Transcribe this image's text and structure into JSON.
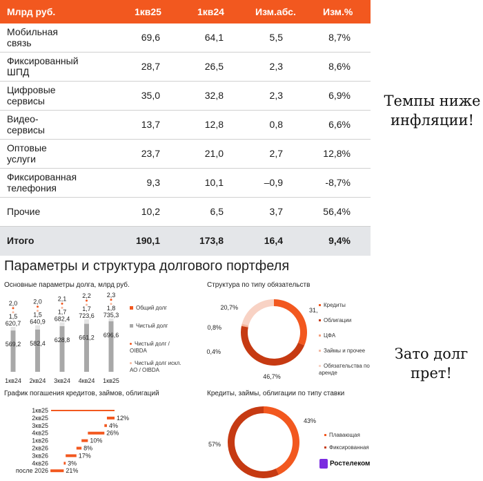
{
  "table": {
    "headers": [
      "Млрд руб.",
      "1кв25",
      "1кв24",
      "Изм.абс.",
      "Изм.%"
    ],
    "rows": [
      {
        "name": "Мобильная\nсвязь",
        "v1": "69,6",
        "v2": "64,1",
        "abs": "5,5",
        "pct": "8,7%"
      },
      {
        "name": "Фиксированный\nШПД",
        "v1": "28,7",
        "v2": "26,5",
        "abs": "2,3",
        "pct": "8,6%"
      },
      {
        "name": "Цифровые\nсервисы",
        "v1": "35,0",
        "v2": "32,8",
        "abs": "2,3",
        "pct": "6,9%"
      },
      {
        "name": "Видео-\nсервисы",
        "v1": "13,7",
        "v2": "12,8",
        "abs": "0,8",
        "pct": "6,6%"
      },
      {
        "name": "Оптовые\nуслуги",
        "v1": "23,7",
        "v2": "21,0",
        "abs": "2,7",
        "pct": "12,8%"
      },
      {
        "name": "Фиксированная\nтелефония",
        "v1": "9,3",
        "v2": "10,1",
        "abs": "–0,9",
        "pct": "-8,7%"
      },
      {
        "name": "Прочие",
        "v1": "10,2",
        "v2": "6,5",
        "abs": "3,7",
        "pct": "56,4%"
      }
    ],
    "total": {
      "name": "Итого",
      "v1": "190,1",
      "v2": "173,8",
      "abs": "16,4",
      "pct": "9,4%"
    }
  },
  "side_notes": {
    "top": "Темпы ниже\nинфляции!",
    "bottom": "Зато долг\nпрет!"
  },
  "section_title": "Параметры и структура долгового портфеля",
  "colors": {
    "accent": "#f2581f",
    "dark_red": "#c63a12",
    "gray": "#a8a8a8",
    "light_peach": "#f8d2c4",
    "total_bg": "#e4e6e9",
    "logo": "#7a2be0"
  },
  "debt_chart": {
    "subtitle": "Основные параметры долга, млрд руб.",
    "chart_data": {
      "type": "bar",
      "categories": [
        "1кв24",
        "2кв24",
        "3кв24",
        "4кв24",
        "1кв25"
      ],
      "series": [
        {
          "name": "Общий долг",
          "values": [
            "620,7",
            "640,9",
            "682,4",
            "723,6",
            "735,3"
          ]
        },
        {
          "name": "Чистый долг",
          "values": [
            "569,2",
            "582,4",
            "628,8",
            "661,2",
            "696,6"
          ]
        },
        {
          "name": "Чистый долг / OIBDA",
          "values": [
            "2,0",
            "2,0",
            "2,1",
            "2,2",
            "2,3"
          ]
        },
        {
          "name": "Чистый долг искл. АО / OIBDA",
          "values": [
            "1,5",
            "1,5",
            "1,7",
            "1,7",
            "1,8"
          ]
        }
      ],
      "total_debt": [
        620.7,
        640.9,
        682.4,
        723.6,
        735.3
      ],
      "net_debt": [
        569.2,
        582.4,
        628.8,
        661.2,
        696.6
      ]
    },
    "legend": [
      "Общий долг",
      "Чистый долг",
      "Чистый долг /\nOIBDA",
      "Чистый долг искл.\nАО / OIBDA"
    ]
  },
  "structure_chart": {
    "subtitle": "Структура по типу обязательств",
    "chart_data": {
      "type": "pie",
      "labels": [
        "Кредиты",
        "Облигации",
        "ЦФА",
        "Займы и прочее",
        "Обязательства по аренде"
      ],
      "values": [
        31.4,
        46.7,
        0.4,
        0.8,
        20.7
      ],
      "value_labels": [
        "31,4%",
        "46,7%",
        "0,4%",
        "0,8%",
        "20,7%"
      ]
    },
    "legend": [
      "Кредиты",
      "Облигации",
      "ЦФА",
      "Займы и прочее",
      "Обязательства по\nаренде"
    ]
  },
  "repay_chart": {
    "subtitle": "График погашения кредитов, займов, облигаций",
    "chart_data": {
      "type": "bar",
      "categories": [
        "1кв25",
        "2кв25",
        "3кв25",
        "4кв25",
        "1кв26",
        "2кв26",
        "3кв26",
        "4кв26",
        "после 2026"
      ],
      "values": [
        null,
        12,
        4,
        26,
        10,
        8,
        17,
        3,
        21
      ],
      "value_labels": [
        "",
        "12%",
        "4%",
        "26%",
        "10%",
        "8%",
        "17%",
        "3%",
        "21%"
      ]
    }
  },
  "rate_chart": {
    "subtitle": "Кредиты, займы, облигации по типу ставки",
    "chart_data": {
      "type": "pie",
      "labels": [
        "Плавающая",
        "Фиксированная"
      ],
      "values": [
        43,
        57
      ],
      "value_labels": [
        "43%",
        "57%"
      ]
    },
    "legend": [
      "Плавающая",
      "Фиксированная"
    ]
  },
  "logo": "Ростелеком"
}
